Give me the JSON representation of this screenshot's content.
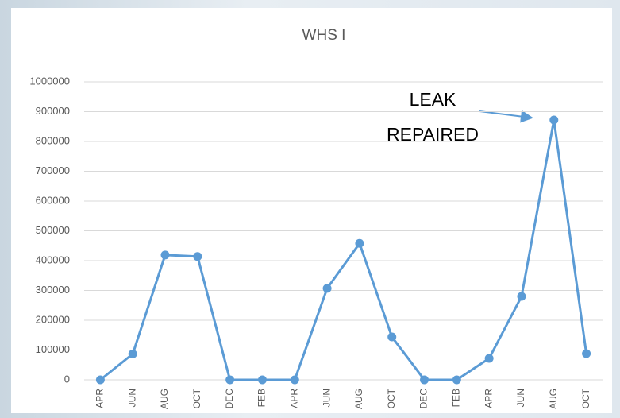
{
  "chart_data": {
    "type": "line",
    "title": "WHS I",
    "categories": [
      "APR",
      "JUN",
      "AUG",
      "OCT",
      "DEC",
      "FEB",
      "APR",
      "JUN",
      "AUG",
      "OCT",
      "DEC",
      "FEB",
      "APR",
      "JUN",
      "AUG",
      "OCT"
    ],
    "series": [
      {
        "name": "WHS I",
        "color": "#5b9bd5",
        "values": [
          0,
          87000,
          419000,
          414000,
          0,
          0,
          0,
          307000,
          458000,
          144000,
          0,
          0,
          72000,
          280000,
          872000,
          88000
        ]
      }
    ],
    "ylim": [
      0,
      1000000
    ],
    "yticks": [
      0,
      100000,
      200000,
      300000,
      400000,
      500000,
      600000,
      700000,
      800000,
      900000,
      1000000
    ],
    "grid": true,
    "annotation": [
      "LEAK",
      "REPAIRED"
    ]
  }
}
